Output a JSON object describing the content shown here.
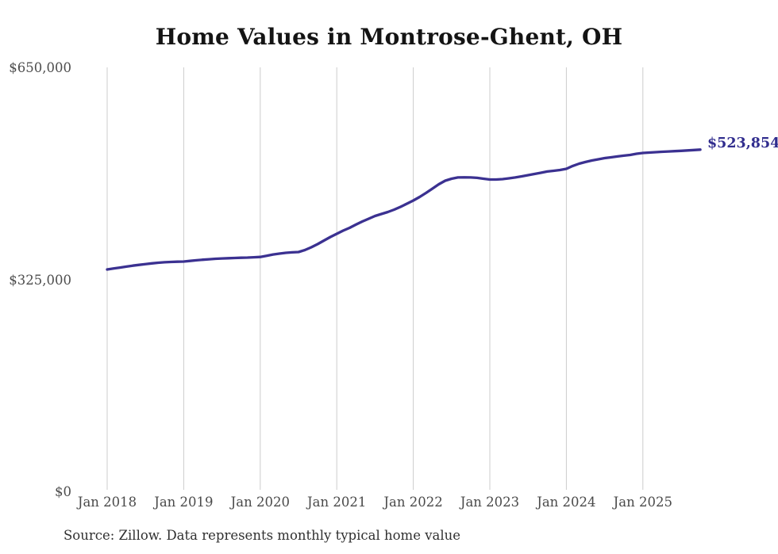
{
  "title": "Home Values in Montrose-Ghent, OH",
  "source_note": "Source: Zillow. Data represents monthly typical home value",
  "end_label": "$523,854",
  "colors": {
    "line": "#3b3191",
    "end_label": "#312d8e",
    "grid": "#cccccc",
    "title_text": "#141414",
    "tick_text": "#4a4a4a",
    "source_text": "#303030",
    "background": "#ffffff"
  },
  "chart_data": {
    "type": "line",
    "title": "Home Values in Montrose-Ghent, OH",
    "xlabel": "",
    "ylabel": "",
    "ylim": [
      0,
      650000
    ],
    "grid": "vertical-only",
    "legend": "none",
    "x_start_month": "Jan 2018",
    "x_end_month": "Oct 2025",
    "x_tick_labels": [
      "Jan 2018",
      "Jan 2019",
      "Jan 2020",
      "Jan 2021",
      "Jan 2022",
      "Jan 2023",
      "Jan 2024",
      "Jan 2025"
    ],
    "y_ticks": [
      {
        "label": "$650,000",
        "value": 650000
      },
      {
        "label": "$325,000",
        "value": 325000
      },
      {
        "label": "$0",
        "value": 0
      }
    ],
    "annotation": {
      "text": "$523,854",
      "value": 523854,
      "position": "line-end"
    },
    "series": [
      {
        "name": "Typical home value (monthly)",
        "values": [
          340200,
          341600,
          343100,
          344600,
          346000,
          347200,
          348500,
          349500,
          350500,
          351300,
          351700,
          352100,
          352300,
          353300,
          354300,
          355100,
          355900,
          356600,
          357100,
          357400,
          357800,
          358200,
          358400,
          358900,
          359400,
          361100,
          363100,
          364500,
          365700,
          366400,
          366900,
          370000,
          374200,
          379100,
          384500,
          390000,
          394900,
          399700,
          404000,
          408900,
          413700,
          418000,
          422200,
          425200,
          428300,
          431900,
          436200,
          441000,
          445900,
          451400,
          457500,
          464100,
          470800,
          476300,
          479300,
          481200,
          481400,
          481200,
          480600,
          479300,
          478100,
          478100,
          478700,
          479900,
          481200,
          483000,
          484800,
          486600,
          488400,
          490300,
          491500,
          492700,
          494500,
          498800,
          502400,
          504900,
          507300,
          509100,
          510900,
          512100,
          513400,
          514600,
          515800,
          517600,
          518800,
          519400,
          520000,
          520600,
          521100,
          521600,
          522100,
          522700,
          523300,
          523854
        ]
      }
    ]
  }
}
